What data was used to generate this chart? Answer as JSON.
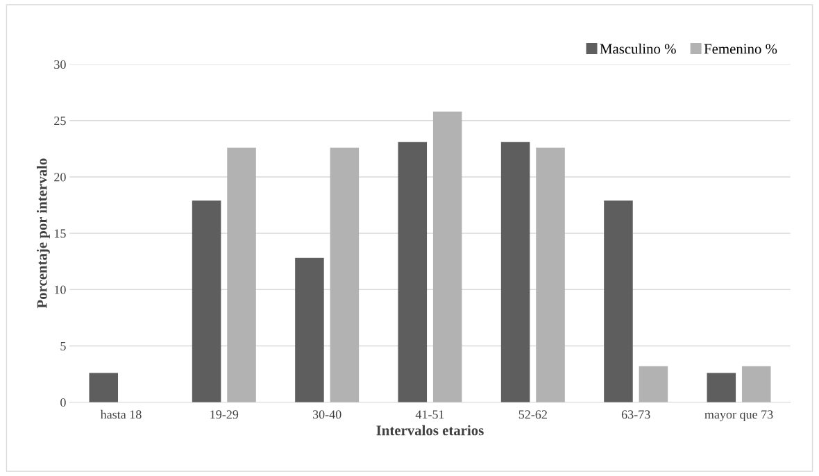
{
  "chart_data": {
    "type": "bar",
    "xlabel": "Intervalos etarios",
    "ylabel": "Porcentaje por intervalo",
    "categories": [
      "hasta 18",
      "19-29",
      "30-40",
      "41-51",
      "52-62",
      "63-73",
      "mayor que 73"
    ],
    "series": [
      {
        "name": "Masculino %",
        "color": "#5e5e5e",
        "values": [
          2.6,
          17.9,
          12.8,
          23.1,
          23.1,
          17.9,
          2.6
        ]
      },
      {
        "name": "Femenino %",
        "color": "#b2b2b2",
        "values": [
          0,
          22.6,
          22.6,
          25.8,
          22.6,
          3.2,
          3.2
        ]
      }
    ],
    "ylim": [
      0,
      30
    ],
    "yticks": [
      0,
      5,
      10,
      15,
      20,
      25,
      30
    ],
    "grid": "y",
    "legend": "top right"
  }
}
